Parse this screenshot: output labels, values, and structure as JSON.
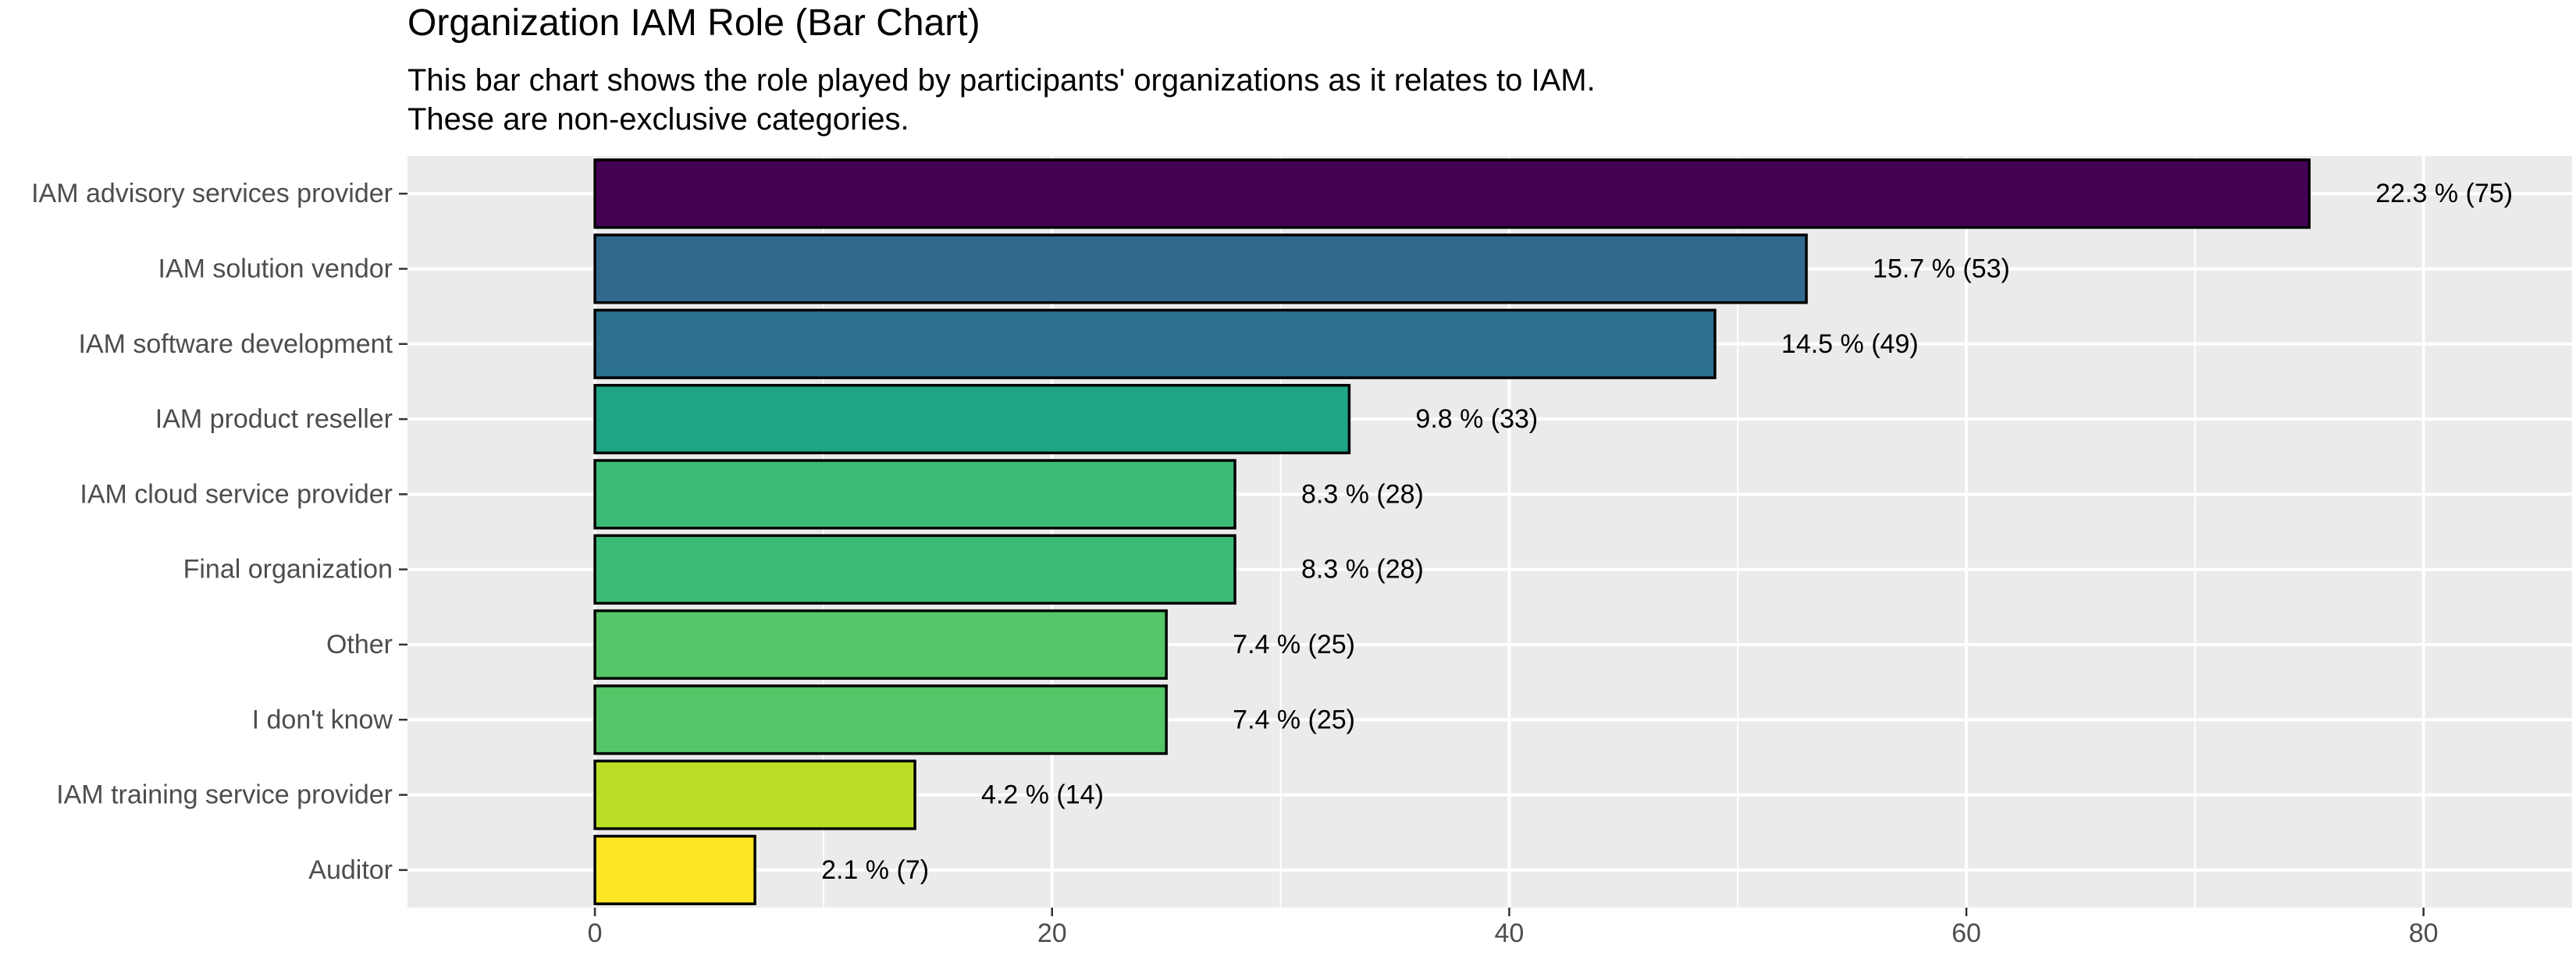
{
  "title": "Organization IAM Role (Bar Chart)",
  "subtitle_lines": [
    "This bar chart shows the role played by participants' organizations as it relates to IAM.",
    "These are non-exclusive categories."
  ],
  "chart_data": {
    "type": "bar",
    "orientation": "horizontal",
    "title": "Organization IAM Role (Bar Chart)",
    "subtitle": "This bar chart shows the role played by participants' organizations as it relates to IAM. These are non-exclusive categories.",
    "xlabel": "",
    "ylabel": "",
    "xlim": [
      -8.2,
      86.5
    ],
    "x_ticks": [
      0,
      20,
      40,
      60,
      80
    ],
    "grid": true,
    "categories": [
      "IAM advisory services provider",
      "IAM solution vendor",
      "IAM software development",
      "IAM product reseller",
      "IAM cloud service provider",
      "Final organization",
      "Other",
      "I don't know",
      "IAM training service provider",
      "Auditor"
    ],
    "values": [
      75,
      53,
      49,
      33,
      28,
      28,
      25,
      25,
      14,
      7
    ],
    "labels": [
      "22.3 % (75)",
      "15.7 % (53)",
      "14.5 % (49)",
      "9.8 % (33)",
      "8.3 % (28)",
      "8.3 % (28)",
      "7.4 % (25)",
      "7.4 % (25)",
      "4.2 % (14)",
      "2.1 % (7)"
    ],
    "colors": [
      "#440154",
      "#31688E",
      "#2C728E",
      "#20A486",
      "#3BBB75",
      "#3BBB75",
      "#55C667",
      "#55C667",
      "#BADE28",
      "#FDE725"
    ],
    "panel_background": "#EBEBEB",
    "bar_outline": "#000000"
  }
}
